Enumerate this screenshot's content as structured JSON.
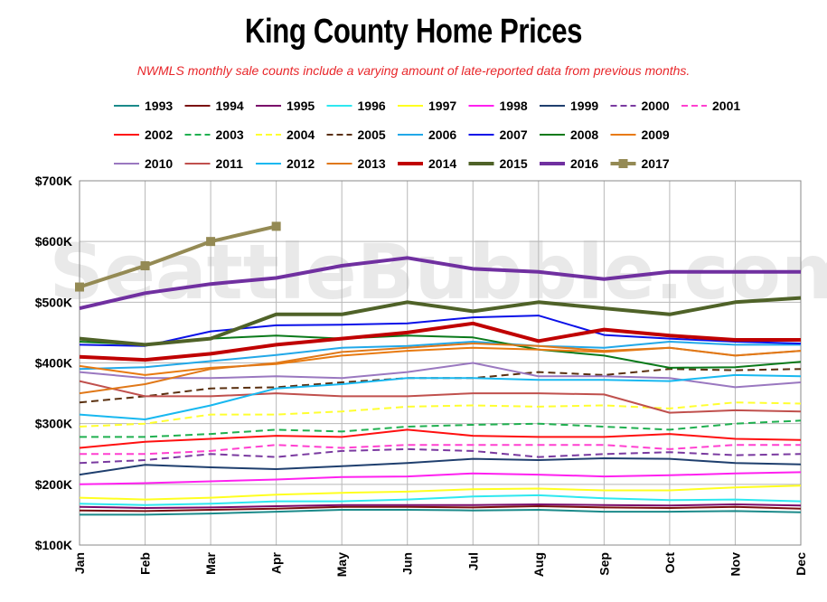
{
  "chart_data": {
    "type": "line",
    "title": "King County Home Prices",
    "subtitle": "NWMLS monthly sale counts include a varying amount of late-reported  data from previous months.",
    "watermark": "SeattleBubble.com",
    "categories": [
      "Jan",
      "Feb",
      "Mar",
      "Apr",
      "May",
      "Jun",
      "Jul",
      "Aug",
      "Sep",
      "Oct",
      "Nov",
      "Dec"
    ],
    "y_ticks": [
      {
        "value": 100000,
        "label": "$100K"
      },
      {
        "value": 200000,
        "label": "$200K"
      },
      {
        "value": 300000,
        "label": "$300K"
      },
      {
        "value": 400000,
        "label": "$400K"
      },
      {
        "value": 500000,
        "label": "$500K"
      },
      {
        "value": 600000,
        "label": "$600K"
      },
      {
        "value": 700000,
        "label": "$700K"
      }
    ],
    "ylim": [
      100000,
      700000
    ],
    "grid": true,
    "legend_position": "top",
    "series": [
      {
        "name": "1993",
        "color": "#1b8a8a",
        "dash": "solid",
        "width": 2,
        "values": [
          150000,
          150000,
          152000,
          155000,
          158000,
          158000,
          157000,
          158000,
          155000,
          155000,
          156000,
          154000
        ]
      },
      {
        "name": "1994",
        "color": "#7a1010",
        "dash": "solid",
        "width": 2,
        "values": [
          157000,
          156000,
          158000,
          160000,
          163000,
          163000,
          162000,
          164000,
          162000,
          161000,
          163000,
          160000
        ]
      },
      {
        "name": "1995",
        "color": "#7a0a6a",
        "dash": "solid",
        "width": 2,
        "values": [
          163000,
          161000,
          162000,
          164000,
          166000,
          166000,
          166000,
          167000,
          166000,
          165000,
          167000,
          165000
        ]
      },
      {
        "name": "1996",
        "color": "#2ee8f0",
        "dash": "solid",
        "width": 2,
        "values": [
          168000,
          166000,
          168000,
          172000,
          172000,
          175000,
          180000,
          182000,
          177000,
          174000,
          175000,
          172000
        ]
      },
      {
        "name": "1997",
        "color": "#ffff20",
        "dash": "solid",
        "width": 2,
        "values": [
          178000,
          175000,
          178000,
          183000,
          186000,
          188000,
          192000,
          193000,
          190000,
          190000,
          195000,
          198000
        ]
      },
      {
        "name": "1998",
        "color": "#ff20f0",
        "dash": "solid",
        "width": 2,
        "values": [
          200000,
          202000,
          205000,
          208000,
          212000,
          213000,
          218000,
          216000,
          213000,
          215000,
          218000,
          220000
        ]
      },
      {
        "name": "1999",
        "color": "#1f3f6e",
        "dash": "solid",
        "width": 2,
        "values": [
          216000,
          232000,
          228000,
          225000,
          230000,
          235000,
          242000,
          240000,
          243000,
          242000,
          235000,
          233000
        ]
      },
      {
        "name": "2000",
        "color": "#7a3aa0",
        "dash": "dashed",
        "width": 2,
        "values": [
          235000,
          240000,
          250000,
          245000,
          255000,
          258000,
          255000,
          245000,
          250000,
          253000,
          248000,
          250000
        ]
      },
      {
        "name": "2001",
        "color": "#ff40d0",
        "dash": "dashed",
        "width": 2,
        "values": [
          250000,
          250000,
          255000,
          265000,
          260000,
          265000,
          265000,
          265000,
          265000,
          258000,
          265000,
          265000
        ]
      },
      {
        "name": "2002",
        "color": "#ff1010",
        "dash": "solid",
        "width": 2,
        "values": [
          260000,
          270000,
          275000,
          280000,
          278000,
          290000,
          280000,
          278000,
          278000,
          283000,
          275000,
          273000
        ]
      },
      {
        "name": "2003",
        "color": "#20b050",
        "dash": "dashed",
        "width": 2,
        "values": [
          278000,
          278000,
          283000,
          290000,
          287000,
          295000,
          298000,
          300000,
          295000,
          290000,
          300000,
          305000
        ]
      },
      {
        "name": "2004",
        "color": "#ffff30",
        "dash": "dashed",
        "width": 2,
        "values": [
          295000,
          300000,
          315000,
          315000,
          320000,
          328000,
          330000,
          328000,
          330000,
          325000,
          335000,
          333000
        ]
      },
      {
        "name": "2005",
        "color": "#5a3010",
        "dash": "dashed",
        "width": 2,
        "values": [
          335000,
          345000,
          358000,
          360000,
          368000,
          375000,
          375000,
          385000,
          380000,
          390000,
          388000,
          390000
        ]
      },
      {
        "name": "2006",
        "color": "#22a8e8",
        "dash": "solid",
        "width": 2,
        "values": [
          390000,
          393000,
          403000,
          413000,
          425000,
          428000,
          435000,
          428000,
          425000,
          435000,
          430000,
          430000
        ]
      },
      {
        "name": "2007",
        "color": "#0a10e8",
        "dash": "solid",
        "width": 2,
        "values": [
          430000,
          428000,
          452000,
          462000,
          463000,
          465000,
          475000,
          478000,
          446000,
          440000,
          435000,
          432000
        ]
      },
      {
        "name": "2008",
        "color": "#0a7a1a",
        "dash": "solid",
        "width": 2,
        "values": [
          435000,
          430000,
          440000,
          445000,
          440000,
          445000,
          442000,
          422000,
          412000,
          392000,
          393000,
          402000
        ]
      },
      {
        "name": "2009",
        "color": "#e87a10",
        "dash": "solid",
        "width": 2,
        "values": [
          395000,
          380000,
          392000,
          398000,
          412000,
          420000,
          425000,
          422000,
          418000,
          425000,
          412000,
          420000
        ]
      },
      {
        "name": "2010",
        "color": "#9a78c0",
        "dash": "solid",
        "width": 2,
        "values": [
          385000,
          375000,
          375000,
          378000,
          375000,
          385000,
          400000,
          378000,
          378000,
          375000,
          360000,
          368000
        ]
      },
      {
        "name": "2011",
        "color": "#c0504d",
        "dash": "solid",
        "width": 2,
        "values": [
          370000,
          345000,
          345000,
          350000,
          345000,
          345000,
          350000,
          350000,
          348000,
          318000,
          322000,
          320000
        ]
      },
      {
        "name": "2012",
        "color": "#18b8f0",
        "dash": "solid",
        "width": 2,
        "values": [
          315000,
          307000,
          330000,
          358000,
          365000,
          375000,
          375000,
          372000,
          372000,
          370000,
          380000,
          378000
        ]
      },
      {
        "name": "2013",
        "color": "#e07818",
        "dash": "solid",
        "width": 2,
        "values": [
          350000,
          365000,
          390000,
          400000,
          418000,
          425000,
          432000,
          428000,
          420000,
          425000,
          412000,
          420000
        ]
      },
      {
        "name": "2014",
        "color": "#c00000",
        "dash": "solid",
        "width": 4,
        "values": [
          410000,
          405000,
          415000,
          430000,
          440000,
          450000,
          465000,
          436000,
          455000,
          445000,
          438000,
          438000
        ]
      },
      {
        "name": "2015",
        "color": "#4f6228",
        "dash": "solid",
        "width": 4,
        "values": [
          440000,
          430000,
          440000,
          480000,
          480000,
          500000,
          485000,
          500000,
          490000,
          480000,
          500000,
          507000
        ]
      },
      {
        "name": "2016",
        "color": "#7030a0",
        "dash": "solid",
        "width": 4,
        "values": [
          490000,
          515000,
          530000,
          540000,
          560000,
          573000,
          555000,
          550000,
          538000,
          550000,
          550000,
          550000
        ]
      },
      {
        "name": "2017",
        "color": "#948a54",
        "dash": "solid",
        "width": 4,
        "marker": "square",
        "values": [
          525000,
          560000,
          600000,
          625000,
          null,
          null,
          null,
          null,
          null,
          null,
          null,
          null
        ]
      }
    ]
  }
}
